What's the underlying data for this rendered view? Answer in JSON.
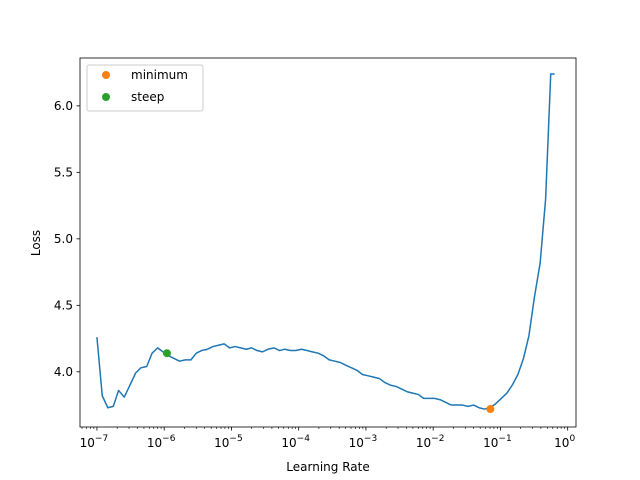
{
  "chart_data": {
    "type": "line",
    "title": "",
    "xlabel": "Learning Rate",
    "ylabel": "Loss",
    "x_scale": "log",
    "xlim": [
      5.6e-08,
      1.33
    ],
    "ylim": [
      3.585,
      6.36
    ],
    "grid": false,
    "legend_position": "top-left",
    "x_ticks": [
      {
        "value": 1e-07,
        "base": "10",
        "exp": "−7"
      },
      {
        "value": 1e-06,
        "base": "10",
        "exp": "−6"
      },
      {
        "value": 1e-05,
        "base": "10",
        "exp": "−5"
      },
      {
        "value": 0.0001,
        "base": "10",
        "exp": "−4"
      },
      {
        "value": 0.001,
        "base": "10",
        "exp": "−3"
      },
      {
        "value": 0.01,
        "base": "10",
        "exp": "−2"
      },
      {
        "value": 0.1,
        "base": "10",
        "exp": "−1"
      },
      {
        "value": 1,
        "base": "10",
        "exp": "0"
      }
    ],
    "y_ticks": [
      {
        "value": 4.0,
        "label": "4.0"
      },
      {
        "value": 4.5,
        "label": "4.5"
      },
      {
        "value": 5.0,
        "label": "5.0"
      },
      {
        "value": 5.5,
        "label": "5.5"
      },
      {
        "value": 6.0,
        "label": "6.0"
      }
    ],
    "series": [
      {
        "color": "#1f77b4",
        "x": [
          1e-07,
          1.2e-07,
          1.45e-07,
          1.75e-07,
          2.1e-07,
          2.55e-07,
          3.1e-07,
          3.75e-07,
          4.5e-07,
          5.5e-07,
          6.6e-07,
          8e-07,
          9.6e-07,
          1.17e-06,
          1.41e-06,
          1.7e-06,
          2.05e-06,
          2.5e-06,
          3e-06,
          3.6e-06,
          4.4e-06,
          5.3e-06,
          6.4e-06,
          7.8e-06,
          9.4e-06,
          1.14e-05,
          1.37e-05,
          1.66e-05,
          2e-05,
          2.4e-05,
          2.9e-05,
          3.5e-05,
          4.3e-05,
          5.2e-05,
          6.2e-05,
          7.5e-05,
          9.1e-05,
          0.00011,
          0.000133,
          0.00016,
          0.000195,
          0.000235,
          0.000285,
          0.000345,
          0.000415,
          0.0005,
          0.00061,
          0.00074,
          0.00089,
          0.00108,
          0.0013,
          0.00158,
          0.0019,
          0.0023,
          0.0028,
          0.0034,
          0.0041,
          0.00495,
          0.006,
          0.0072,
          0.0087,
          0.0105,
          0.0127,
          0.0154,
          0.0186,
          0.0225,
          0.0272,
          0.033,
          0.04,
          0.048,
          0.058,
          0.07,
          0.085,
          0.103,
          0.125,
          0.15,
          0.182,
          0.22,
          0.265,
          0.32,
          0.39,
          0.47,
          0.56,
          0.64
        ],
        "y": [
          4.26,
          3.82,
          3.73,
          3.74,
          3.86,
          3.81,
          3.9,
          3.99,
          4.03,
          4.04,
          4.14,
          4.18,
          4.15,
          4.12,
          4.1,
          4.08,
          4.09,
          4.09,
          4.14,
          4.16,
          4.17,
          4.19,
          4.2,
          4.21,
          4.18,
          4.19,
          4.18,
          4.17,
          4.18,
          4.16,
          4.15,
          4.17,
          4.18,
          4.16,
          4.17,
          4.16,
          4.16,
          4.17,
          4.16,
          4.15,
          4.14,
          4.12,
          4.09,
          4.08,
          4.07,
          4.05,
          4.03,
          4.01,
          3.98,
          3.97,
          3.96,
          3.95,
          3.92,
          3.9,
          3.89,
          3.87,
          3.85,
          3.84,
          3.83,
          3.8,
          3.8,
          3.8,
          3.79,
          3.77,
          3.75,
          3.75,
          3.75,
          3.74,
          3.75,
          3.73,
          3.72,
          3.73,
          3.76,
          3.8,
          3.84,
          3.9,
          3.98,
          4.1,
          4.27,
          4.56,
          4.82,
          5.3,
          6.24,
          6.24
        ]
      }
    ],
    "markers": [
      {
        "name": "minimum",
        "x": 0.0708,
        "y": 3.72,
        "color": "#ff7f0e"
      },
      {
        "name": "steep",
        "x": 1.1e-06,
        "y": 4.14,
        "color": "#2ca02c"
      }
    ]
  }
}
